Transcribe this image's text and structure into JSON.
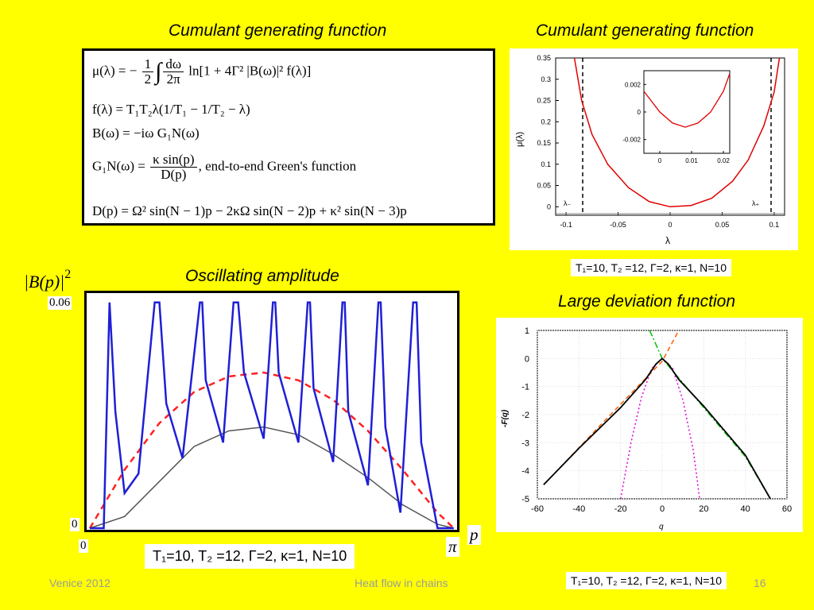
{
  "titles": {
    "cgf_left": "Cumulant generating function",
    "cgf_right": "Cumulant generating function",
    "oscillating": "Oscillating amplitude",
    "large_deviation": "Large deviation function"
  },
  "equations": {
    "mu_lhs": "μ(λ) = −",
    "mu_frac_num": "1",
    "mu_frac_den": "2",
    "mu_int": "∫",
    "mu_frac2_num": "dω",
    "mu_frac2_den": "2π",
    "mu_rhs": "ln[1 + 4Γ² |B(ω)|² f(λ)]",
    "f_eq": "f(λ) = T₁T₂λ(1/T₁ − 1/T₂ − λ)",
    "b_eq": "B(ω) = −iω G₁N(ω)",
    "g_lhs": "G₁N(ω) =",
    "g_frac_num": "κ sin(p)",
    "g_frac_den": "D(p)",
    "g_comment": ",  end-to-end Green's function",
    "d_eq": "D(p) = Ω² sin(N − 1)p − 2κΩ sin(N − 2)p + κ² sin(N − 3)p"
  },
  "params": {
    "top_right": "T₁=10, T₂ =12, Γ=2, κ=1, N=10",
    "bottom_left": "T₁=10, T₂ =12, Γ=2, κ=1, N=10",
    "bottom_right": "T₁=10, T₂ =12, Γ=2, κ=1, N=10"
  },
  "oscillating_plot": {
    "ylabel": "|B(p)|",
    "ylabel_sup": "2",
    "ytick_top": "0.06",
    "ytick_zero": "0",
    "xtick_zero": "0",
    "xtick_pi": "π",
    "xlabel": "p"
  },
  "footer": {
    "left": "Venice 2012",
    "center": "Heat flow in chains",
    "page": "16"
  },
  "chart_data": [
    {
      "type": "line",
      "title": "Cumulant generating function",
      "xlabel": "λ",
      "ylabel": "μ(λ)",
      "xlim": [
        -0.11,
        0.11
      ],
      "ylim": [
        -0.02,
        0.35
      ],
      "xticks": [
        "-0.1",
        "-0.05",
        "0",
        "0.05",
        "0.1"
      ],
      "yticks": [
        "0",
        "0.05",
        "0.1",
        "0.15",
        "0.2",
        "0.25",
        "0.3",
        "0.35"
      ],
      "annotations": [
        "λ₋",
        "λ₊"
      ],
      "series": [
        {
          "color": "#e00000",
          "x": [
            -0.092,
            -0.085,
            -0.075,
            -0.06,
            -0.04,
            -0.02,
            0,
            0.02,
            0.04,
            0.06,
            0.075,
            0.09,
            0.1,
            0.105
          ],
          "y": [
            0.35,
            0.25,
            0.17,
            0.1,
            0.045,
            0.012,
            0,
            0.003,
            0.02,
            0.06,
            0.11,
            0.19,
            0.27,
            0.35
          ]
        },
        {
          "color": "#000000",
          "style": "dashed",
          "x": [
            -0.083,
            -0.083
          ],
          "y": [
            0,
            0.35
          ]
        },
        {
          "color": "#000000",
          "style": "dashed",
          "x": [
            0.1,
            0.1
          ],
          "y": [
            0,
            0.35
          ]
        }
      ],
      "inset": {
        "xticks": [
          "0",
          "0.01",
          "0.02"
        ],
        "yticks": [
          "0.002",
          "0",
          "-0.002"
        ],
        "xlim": [
          -0.005,
          0.022
        ],
        "ylim": [
          -0.003,
          0.003
        ],
        "series": [
          {
            "color": "#e00000",
            "x": [
              -0.005,
              0,
              0.004,
              0.008,
              0.012,
              0.016,
              0.02,
              0.022
            ],
            "y": [
              0.0015,
              0,
              -0.0008,
              -0.0011,
              -0.0008,
              0,
              0.0015,
              0.0028
            ]
          }
        ]
      }
    },
    {
      "type": "line",
      "title": "Oscillating amplitude",
      "xlabel": "p",
      "ylabel": "|B(p)|²",
      "xlim": [
        0,
        3.1416
      ],
      "ylim": [
        0,
        0.06
      ],
      "series": [
        {
          "color": "#1f1fd6",
          "x": [
            0.0,
            0.12,
            0.17,
            0.22,
            0.3,
            0.42,
            0.56,
            0.6,
            0.66,
            0.8,
            0.95,
            0.97,
            1.0,
            1.15,
            1.24,
            1.28,
            1.33,
            1.5,
            1.58,
            1.6,
            1.63,
            1.8,
            1.88,
            1.9,
            1.93,
            2.1,
            2.18,
            2.2,
            2.23,
            2.4,
            2.49,
            2.51,
            2.55,
            2.68,
            2.79,
            2.82,
            2.86,
            3.0,
            3.05,
            3.14
          ],
          "y": [
            0.0,
            0.0,
            0.058,
            0.03,
            0.009,
            0.014,
            0.058,
            0.058,
            0.032,
            0.018,
            0.058,
            0.058,
            0.038,
            0.022,
            0.058,
            0.058,
            0.04,
            0.023,
            0.058,
            0.058,
            0.04,
            0.022,
            0.058,
            0.058,
            0.036,
            0.017,
            0.058,
            0.058,
            0.03,
            0.011,
            0.058,
            0.058,
            0.026,
            0.004,
            0.058,
            0.058,
            0.022,
            0.0,
            0.0,
            0.0
          ]
        },
        {
          "color": "#ff2020",
          "style": "dashed",
          "x": [
            0,
            0.3,
            0.6,
            0.9,
            1.2,
            1.5,
            1.8,
            2.1,
            2.4,
            2.7,
            3.0,
            3.14
          ],
          "y": [
            0.0,
            0.015,
            0.027,
            0.035,
            0.039,
            0.04,
            0.038,
            0.033,
            0.025,
            0.015,
            0.004,
            0.0
          ]
        },
        {
          "color": "#555555",
          "x": [
            0,
            0.3,
            0.6,
            0.9,
            1.2,
            1.5,
            1.8,
            2.1,
            2.4,
            2.7,
            3.0,
            3.14
          ],
          "y": [
            0.0,
            0.003,
            0.012,
            0.021,
            0.025,
            0.026,
            0.024,
            0.019,
            0.013,
            0.006,
            0.001,
            0.0
          ]
        }
      ]
    },
    {
      "type": "line",
      "title": "Large deviation function",
      "xlabel": "q",
      "ylabel": "-F(q)",
      "xlim": [
        -60,
        60
      ],
      "ylim": [
        -5,
        1
      ],
      "xticks": [
        "-60",
        "-40",
        "-20",
        "0",
        "20",
        "40",
        "60"
      ],
      "yticks": [
        "1",
        "0",
        "-1",
        "-2",
        "-3",
        "-4",
        "-5"
      ],
      "series": [
        {
          "color": "#000000",
          "x": [
            -57,
            -40,
            -20,
            -8,
            -3,
            0,
            3,
            8,
            20,
            40,
            52
          ],
          "y": [
            -4.5,
            -3.2,
            -1.75,
            -0.75,
            -0.2,
            0,
            -0.2,
            -0.75,
            -1.7,
            -3.45,
            -5
          ]
        },
        {
          "color": "#ff6000",
          "style": "dashed",
          "x": [
            -57,
            -30,
            0,
            8
          ],
          "y": [
            -4.5,
            -2.4,
            -0.1,
            1.0
          ]
        },
        {
          "color": "#00c000",
          "style": "dashdot",
          "x": [
            -6,
            0,
            20,
            40,
            52
          ],
          "y": [
            1.0,
            0.0,
            -1.75,
            -3.5,
            -5
          ]
        },
        {
          "color": "#e000e0",
          "style": "dotted",
          "x": [
            -20,
            -15,
            -10,
            -5,
            0,
            5,
            10,
            15,
            18
          ],
          "y": [
            -5,
            -3.0,
            -1.4,
            -0.35,
            0,
            -0.35,
            -1.5,
            -3.3,
            -5
          ]
        }
      ]
    }
  ]
}
